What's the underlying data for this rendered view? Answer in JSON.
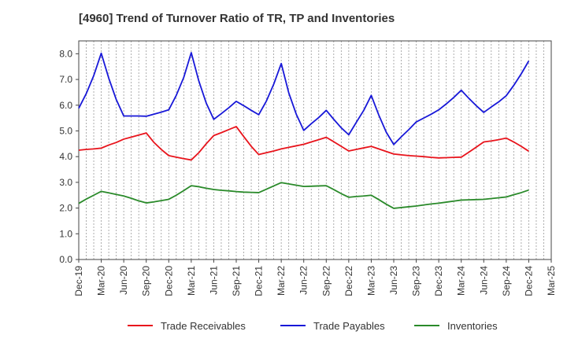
{
  "chart_data": {
    "type": "line",
    "title": "[4960]  Trend of Turnover Ratio of TR, TP and Inventories",
    "xlabel": "",
    "ylabel": "",
    "ylim": [
      0,
      8.5
    ],
    "yticks": [
      "0.0",
      "1.0",
      "2.0",
      "3.0",
      "4.0",
      "5.0",
      "6.0",
      "7.0",
      "8.0"
    ],
    "xticks": [
      "Dec-19",
      "Mar-20",
      "Jun-20",
      "Sep-20",
      "Dec-20",
      "Mar-21",
      "Jun-21",
      "Sep-21",
      "Dec-21",
      "Mar-22",
      "Jun-22",
      "Sep-22",
      "Dec-22",
      "Mar-23",
      "Jun-23",
      "Sep-23",
      "Dec-23",
      "Mar-24",
      "Jun-24",
      "Sep-24",
      "Dec-24",
      "Mar-25"
    ],
    "grid": "vertical dashed",
    "legend_position": "bottom",
    "x": [
      "Dec-19",
      "Jan-20",
      "Feb-20",
      "Mar-20",
      "Apr-20",
      "May-20",
      "Jun-20",
      "Jul-20",
      "Aug-20",
      "Sep-20",
      "Oct-20",
      "Nov-20",
      "Dec-20",
      "Jan-21",
      "Feb-21",
      "Mar-21",
      "Apr-21",
      "May-21",
      "Jun-21",
      "Jul-21",
      "Aug-21",
      "Sep-21",
      "Oct-21",
      "Nov-21",
      "Dec-21",
      "Jan-22",
      "Feb-22",
      "Mar-22",
      "Apr-22",
      "May-22",
      "Jun-22",
      "Jul-22",
      "Aug-22",
      "Sep-22",
      "Oct-22",
      "Nov-22",
      "Dec-22",
      "Jan-23",
      "Feb-23",
      "Mar-23",
      "Apr-23",
      "May-23",
      "Jun-23",
      "Jul-23",
      "Aug-23",
      "Sep-23",
      "Oct-23",
      "Nov-23",
      "Dec-23",
      "Jan-24",
      "Feb-24",
      "Mar-24",
      "Apr-24",
      "May-24",
      "Jun-24",
      "Jul-24",
      "Aug-24",
      "Sep-24",
      "Oct-24",
      "Nov-24",
      "Dec-24"
    ],
    "series": [
      {
        "name": "Trade Receivables",
        "color": "#e8141c",
        "values": [
          4.25,
          4.28,
          4.3,
          4.33,
          4.45,
          4.55,
          4.68,
          4.76,
          4.84,
          4.92,
          4.56,
          4.28,
          4.04,
          3.98,
          3.92,
          3.87,
          4.15,
          4.5,
          4.82,
          4.93,
          5.05,
          5.17,
          4.78,
          4.4,
          4.08,
          4.15,
          4.22,
          4.3,
          4.36,
          4.42,
          4.48,
          4.57,
          4.66,
          4.75,
          4.58,
          4.4,
          4.22,
          4.28,
          4.34,
          4.4,
          4.3,
          4.2,
          4.1,
          4.07,
          4.04,
          4.02,
          4.0,
          3.97,
          3.95,
          3.96,
          3.97,
          3.98,
          4.17,
          4.37,
          4.57,
          4.61,
          4.66,
          4.72,
          4.57,
          4.4,
          4.21
        ]
      },
      {
        "name": "Trade Payables",
        "color": "#1818d8",
        "values": [
          5.88,
          6.45,
          7.15,
          8.02,
          7.05,
          6.22,
          5.58,
          5.58,
          5.58,
          5.57,
          5.65,
          5.73,
          5.82,
          6.38,
          7.08,
          8.04,
          6.95,
          6.08,
          5.45,
          5.67,
          5.9,
          6.15,
          5.98,
          5.8,
          5.63,
          6.15,
          6.82,
          7.62,
          6.48,
          5.65,
          5.02,
          5.28,
          5.52,
          5.8,
          5.45,
          5.12,
          4.85,
          5.33,
          5.8,
          6.38,
          5.62,
          4.95,
          4.47,
          4.77,
          5.05,
          5.35,
          5.5,
          5.65,
          5.82,
          6.05,
          6.3,
          6.58,
          6.27,
          5.98,
          5.72,
          5.93,
          6.13,
          6.37,
          6.77,
          7.22,
          7.72
        ]
      },
      {
        "name": "Inventories",
        "color": "#2a8a2a",
        "values": [
          2.18,
          2.35,
          2.5,
          2.65,
          2.59,
          2.53,
          2.47,
          2.38,
          2.28,
          2.2,
          2.24,
          2.29,
          2.34,
          2.5,
          2.68,
          2.87,
          2.83,
          2.77,
          2.72,
          2.69,
          2.67,
          2.64,
          2.62,
          2.61,
          2.6,
          2.73,
          2.86,
          2.99,
          2.94,
          2.89,
          2.84,
          2.85,
          2.86,
          2.87,
          2.72,
          2.56,
          2.42,
          2.45,
          2.47,
          2.5,
          2.33,
          2.15,
          1.99,
          2.02,
          2.05,
          2.08,
          2.12,
          2.16,
          2.19,
          2.23,
          2.27,
          2.31,
          2.32,
          2.33,
          2.34,
          2.37,
          2.4,
          2.43,
          2.52,
          2.6,
          2.7
        ]
      }
    ]
  }
}
